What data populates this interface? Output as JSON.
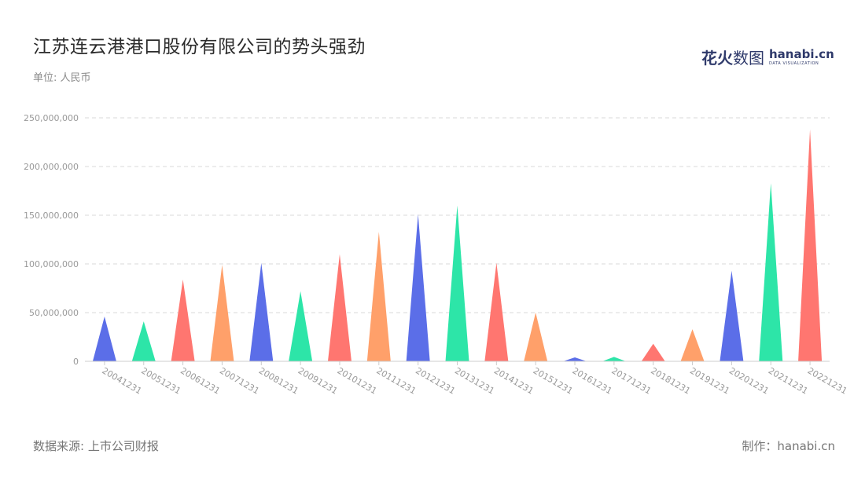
{
  "header": {
    "title": "江苏连云港港口股份有限公司的势头强劲",
    "unit": "单位: 人民币"
  },
  "logo": {
    "cn_bold": "花火",
    "cn_light": "数图",
    "en": "hanabi.cn",
    "en_sub": "DATA VISUALIZATION"
  },
  "footer": {
    "source": "数据来源: 上市公司财报",
    "maker": "制作：hanabi.cn"
  },
  "colors": {
    "palette": [
      "#5b6ee8",
      "#2de5a8",
      "#ff7670",
      "#ffa06a"
    ],
    "grid": "#d9d9d9",
    "axis_text": "#999999"
  },
  "chart_data": {
    "type": "bar",
    "bar_shape": "triangle",
    "categories": [
      "20041231",
      "20051231",
      "20061231",
      "20071231",
      "20081231",
      "20091231",
      "20101231",
      "20111231",
      "20121231",
      "20131231",
      "20141231",
      "20151231",
      "20161231",
      "20171231",
      "20181231",
      "20191231",
      "20201231",
      "20211231",
      "20221231"
    ],
    "values": [
      46000000,
      41000000,
      84000000,
      99000000,
      101000000,
      72000000,
      110000000,
      133000000,
      151000000,
      160000000,
      101000000,
      50000000,
      4000000,
      4500000,
      18000000,
      33000000,
      93000000,
      183000000,
      238000000
    ],
    "ylim": [
      0,
      250000000
    ],
    "yticks": [
      0,
      50000000,
      100000000,
      150000000,
      200000000,
      250000000
    ],
    "ytick_labels": [
      "0",
      "50,000,000",
      "100,000,000",
      "150,000,000",
      "200,000,000",
      "250,000,000"
    ],
    "grid": true,
    "title": "江苏连云港港口股份有限公司的势头强劲",
    "xlabel": "",
    "ylabel": ""
  }
}
